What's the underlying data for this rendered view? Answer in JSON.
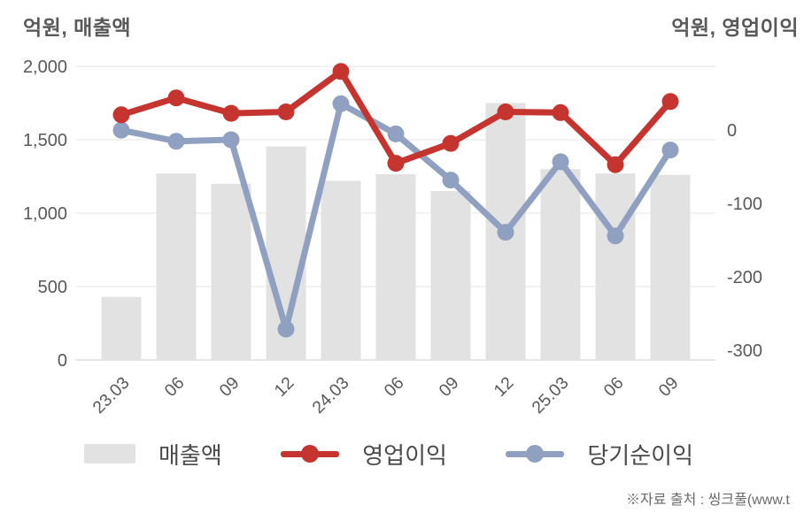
{
  "header": {
    "left_axis_title": "억원, 매출액",
    "right_axis_title": "억원, 영업이익"
  },
  "footer": {
    "source_note": "※자료 출처 : 씽크풀(www.t"
  },
  "legend": [
    {
      "label": "매출액",
      "type": "bar",
      "color": "#e2e2e2"
    },
    {
      "label": "영업이익",
      "type": "line",
      "color": "#c5342e"
    },
    {
      "label": "당기순이익",
      "type": "line",
      "color": "#8fa0c1"
    }
  ],
  "colors": {
    "bar": "#e2e2e2",
    "operating_profit": "#c5342e",
    "net_income": "#8fa0c1",
    "gridline": "#eaeaea",
    "axis_line": "#d7d7d7",
    "tick_text": "#595959"
  },
  "chart_data": {
    "type": "bar+line combo, dual axis",
    "categories": [
      "23.03",
      "06",
      "09",
      "12",
      "24.03",
      "06",
      "09",
      "12",
      "25.03",
      "06",
      "09"
    ],
    "series": [
      {
        "name": "매출액",
        "type": "bar",
        "axis": "left",
        "color": "#e2e2e2",
        "values": [
          430,
          1270,
          1200,
          1455,
          1220,
          1265,
          1150,
          1750,
          1300,
          1270,
          1260
        ]
      },
      {
        "name": "영업이익",
        "type": "line",
        "axis": "right",
        "color": "#c5342e",
        "values": [
          34,
          57,
          36,
          38,
          93,
          -32,
          -5,
          38,
          37,
          -34,
          52
        ]
      },
      {
        "name": "당기순이익",
        "type": "line",
        "axis": "right",
        "color": "#8fa0c1",
        "values": [
          13,
          -2,
          0,
          -258,
          49,
          8,
          -55,
          -126,
          -30,
          -131,
          -14
        ]
      }
    ],
    "left_axis": {
      "title": "억원, 매출액",
      "min": 0,
      "max": 2000,
      "ticks": [
        "0",
        "500",
        "1,000",
        "1,500",
        "2,000"
      ]
    },
    "right_axis": {
      "title": "억원, 영업이익",
      "min": -300,
      "max": 100,
      "ticks": [
        "-300",
        "-200",
        "-100",
        "0"
      ]
    },
    "grid": "horizontal only",
    "legend_position": "bottom"
  }
}
